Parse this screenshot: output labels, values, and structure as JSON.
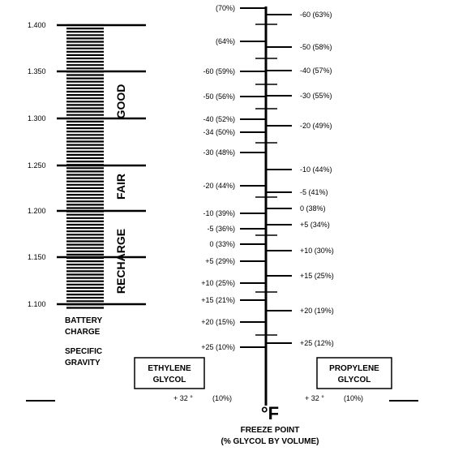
{
  "gravity_scale": {
    "ticks": [
      "1.400",
      "1.350",
      "1.300",
      "1.250",
      "1.200",
      "1.150",
      "1.100"
    ],
    "zones": [
      "GOOD",
      "FAIR",
      "RECHARGE"
    ],
    "caption_line1": "BATTERY",
    "caption_line2": "CHARGE",
    "caption_line3": "SPECIFIC",
    "caption_line4": "GRAVITY"
  },
  "ethylene": {
    "box_line1": "ETHYLENE",
    "box_line2": "GLYCOL",
    "labels": [
      "(70%)",
      "(64%)",
      "-60 (59%)",
      "-50 (56%)",
      "-40 (52%)",
      "-34 (50%)",
      "-30 (48%)",
      "-20 (44%)",
      "-10 (39%)",
      "-5 (36%)",
      "0 (33%)",
      "+5 (29%)",
      "+10 (25%)",
      "+15 (21%)",
      "+20 (15%)",
      "+25 (10%)"
    ],
    "bottom_temp": "+ 32 °",
    "bottom_pct": "(10%)"
  },
  "propylene": {
    "box_line1": "PROPYLENE",
    "box_line2": "GLYCOL",
    "labels": [
      "-60 (63%)",
      "-50 (58%)",
      "-40 (57%)",
      "-30 (55%)",
      "-20 (49%)",
      "-10 (44%)",
      "-5 (41%)",
      "0 (38%)",
      "+5 (34%)",
      "+10 (30%)",
      "+15 (25%)",
      "+20 (19%)",
      "+25 (12%)"
    ],
    "bottom_temp": "+ 32 °",
    "bottom_pct": "(10%)"
  },
  "axis": {
    "unit": "°F",
    "caption_line1": "FREEZE POINT",
    "caption_line2": "(% GLYCOL BY VOLUME)"
  }
}
